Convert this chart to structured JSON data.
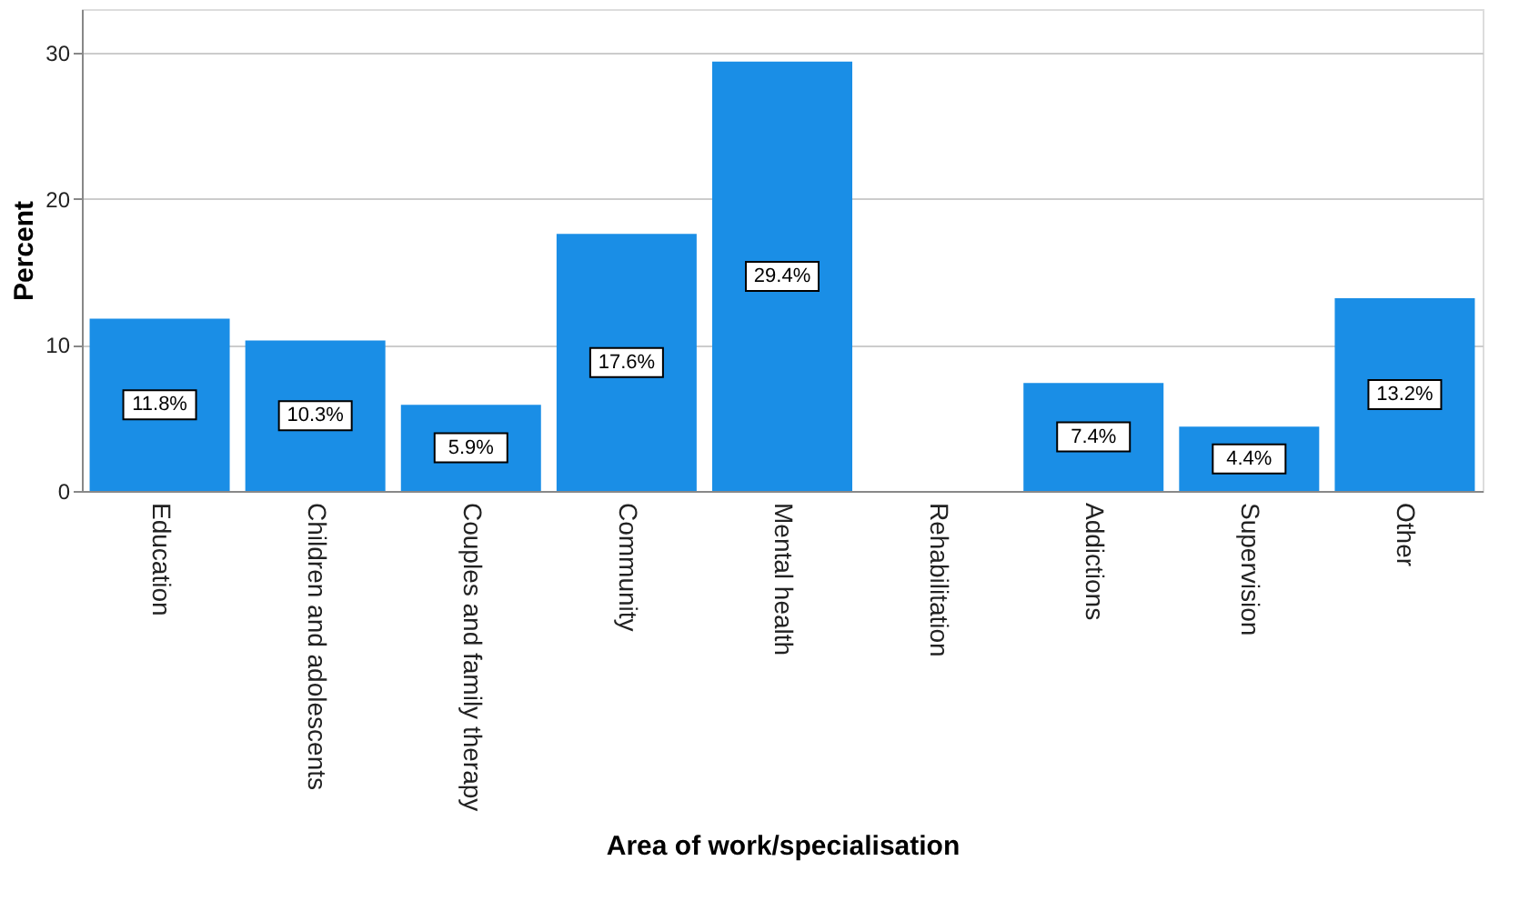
{
  "chart_data": {
    "type": "bar",
    "categories": [
      "Education",
      "Children and adolescents",
      "Couples and family therapy",
      "Community",
      "Mental health",
      "Rehabilitation",
      "Addictions",
      "Supervision",
      "Other"
    ],
    "values": [
      11.8,
      10.3,
      5.9,
      17.6,
      29.4,
      0,
      7.4,
      4.4,
      13.2
    ],
    "value_labels": [
      "11.8%",
      "10.3%",
      "5.9%",
      "17.6%",
      "29.4%",
      null,
      "7.4%",
      "4.4%",
      "13.2%"
    ],
    "color": "#1a8ee6",
    "xlabel": "Area of work/specialisation",
    "ylabel": "Percent",
    "ylim": [
      0,
      33
    ],
    "yticks": [
      0,
      10,
      20,
      30
    ],
    "grid": "y"
  }
}
